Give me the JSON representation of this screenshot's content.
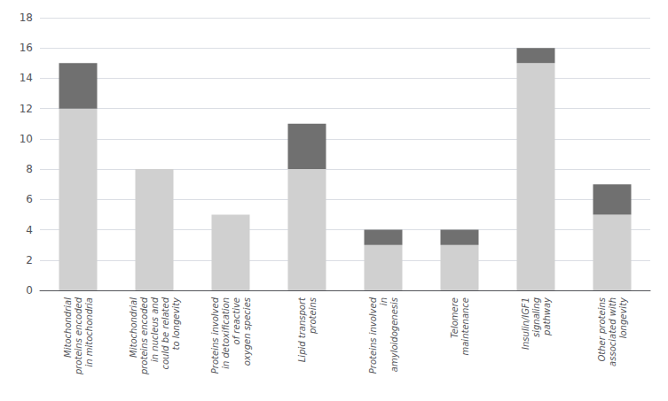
{
  "chart_data": {
    "type": "bar",
    "categories": [
      "Mitochondrial\nproteins encoded\nin mitochondria",
      "Mitochondrial\nproteins encoded\nin nucleus and\ncould be related\nto longevity",
      "Proteins involved\nin detoxification\nof reactive\noxygen species",
      "Lipid transport\nproteins",
      "Proteins involved\nin\namyloidogenesis",
      "Telomere\nmaintenance",
      "Insulin/IGF1\nsignaling\npathway",
      "Other proteins\nassociated with\nlongevity"
    ],
    "series": [
      {
        "color": "#d0d0d0",
        "values": [
          12,
          8,
          5,
          8,
          3,
          3,
          15,
          5
        ]
      },
      {
        "color": "#707070",
        "values": [
          3,
          0,
          0,
          3,
          1,
          1,
          1,
          2
        ]
      }
    ],
    "stacked": true,
    "ylim": [
      0,
      18
    ],
    "yticks": [
      0,
      2,
      4,
      6,
      8,
      10,
      12,
      14,
      16,
      18
    ],
    "grid": true
  }
}
